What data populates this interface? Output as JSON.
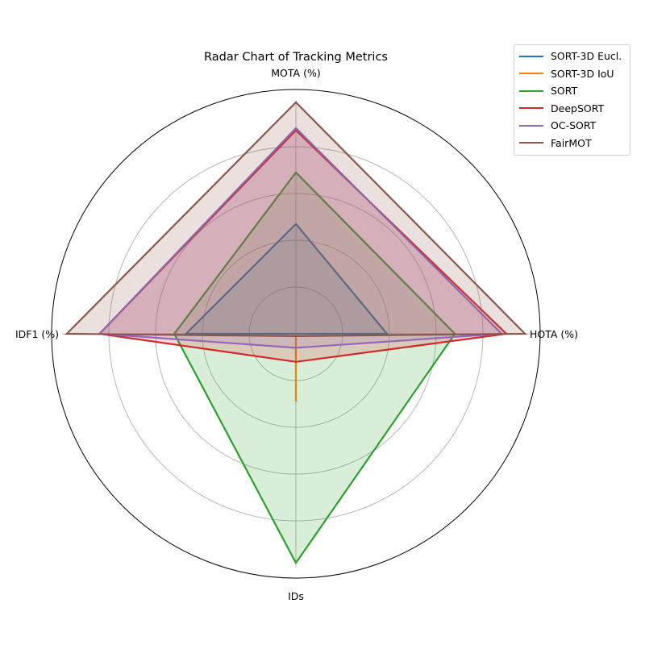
{
  "chart_data": {
    "type": "radar",
    "title": "Radar Chart of Tracking Metrics",
    "axes": [
      "MOTA (%)",
      "HOTA (%)",
      "IDs",
      "IDF1 (%)"
    ],
    "radial_range": [
      0,
      1
    ],
    "radial_ticks": [
      0.2,
      0.4,
      0.6,
      0.8
    ],
    "tick_labels_shown": false,
    "grid": true,
    "legend_position": "top-right",
    "series": [
      {
        "name": "SORT-3D Eucl.",
        "color": "#1f77b4",
        "values": [
          0.47,
          0.39,
          0.0,
          0.47
        ],
        "filled": true
      },
      {
        "name": "SORT-3D IoU",
        "color": "#ff7f0e",
        "values": [
          0.0,
          0.0,
          0.29,
          0.0
        ],
        "filled": false
      },
      {
        "name": "SORT",
        "color": "#2ca02c",
        "values": [
          0.69,
          0.68,
          0.98,
          0.52
        ],
        "filled": true
      },
      {
        "name": "DeepSORT",
        "color": "#d62728",
        "values": [
          0.87,
          0.9,
          0.12,
          0.84
        ],
        "filled": true
      },
      {
        "name": "OC-SORT",
        "color": "#9467bd",
        "values": [
          0.88,
          0.88,
          0.06,
          0.84
        ],
        "filled": true
      },
      {
        "name": "FairMOT",
        "color": "#8c564b",
        "values": [
          0.99,
          0.98,
          0.01,
          0.98
        ],
        "filled": true
      }
    ]
  }
}
